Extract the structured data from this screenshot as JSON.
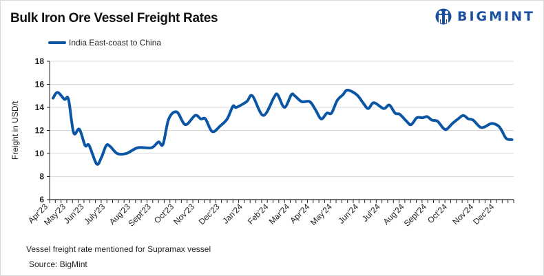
{
  "brand": {
    "name": "BIGMINT",
    "color": "#1a4fa0"
  },
  "chart_data": {
    "type": "line",
    "title": "Bulk Iron Ore Vessel Freight Rates",
    "ylabel": "Freight  in USD/t",
    "xlabel": "",
    "ylim": [
      6,
      18
    ],
    "yticks": [
      6,
      8,
      10,
      12,
      14,
      16,
      18
    ],
    "xlim_weeks": [
      0,
      81
    ],
    "grid": true,
    "legend_position": "top-left",
    "x_tick_labels": [
      {
        "label": "Apr'23",
        "week": 0
      },
      {
        "label": "May'23",
        "week": 2.4
      },
      {
        "label": "Jun'23",
        "week": 6.3
      },
      {
        "label": "July'23",
        "week": 10
      },
      {
        "label": "Aug'23",
        "week": 14.4
      },
      {
        "label": "Sept'23",
        "week": 18
      },
      {
        "label": "Oct'23",
        "week": 22
      },
      {
        "label": "Nov'23",
        "week": 25.6
      },
      {
        "label": "Dec'23",
        "week": 30
      },
      {
        "label": "Jan'24",
        "week": 34
      },
      {
        "label": "Feb'24",
        "week": 38.5
      },
      {
        "label": "Mar'24",
        "week": 42.2
      },
      {
        "label": "Apr'24",
        "week": 45.7
      },
      {
        "label": "May'24",
        "week": 49.6
      },
      {
        "label": "Jun'24",
        "week": 54.2
      },
      {
        "label": "Jul'24",
        "week": 58
      },
      {
        "label": "Aug'24",
        "week": 62.2
      },
      {
        "label": "Sept'24",
        "week": 66.1
      },
      {
        "label": "Oct'24",
        "week": 69.7
      },
      {
        "label": "Nov'24",
        "week": 74.3
      },
      {
        "label": "Dec'24",
        "week": 77.9
      }
    ],
    "series": [
      {
        "name": "India East-coast to China",
        "color": "#0b56a4",
        "points": [
          [
            0.6,
            14.8
          ],
          [
            1.4,
            15.3
          ],
          [
            2.6,
            14.7
          ],
          [
            3.3,
            14.7
          ],
          [
            4.2,
            11.8
          ],
          [
            5.2,
            12.1
          ],
          [
            6.2,
            10.7
          ],
          [
            6.9,
            10.7
          ],
          [
            8.2,
            9.1
          ],
          [
            9.0,
            9.6
          ],
          [
            9.9,
            10.7
          ],
          [
            10.6,
            10.6
          ],
          [
            11.8,
            10.0
          ],
          [
            13.4,
            10.0
          ],
          [
            15.4,
            10.5
          ],
          [
            17.8,
            10.5
          ],
          [
            19.0,
            11.0
          ],
          [
            19.8,
            10.8
          ],
          [
            20.8,
            13.0
          ],
          [
            22.2,
            13.6
          ],
          [
            23.7,
            12.5
          ],
          [
            25.4,
            13.3
          ],
          [
            26.4,
            13.0
          ],
          [
            27.2,
            13.0
          ],
          [
            28.4,
            11.9
          ],
          [
            29.8,
            12.4
          ],
          [
            31.0,
            13.0
          ],
          [
            32.0,
            14.1
          ],
          [
            32.6,
            14.0
          ],
          [
            34.4,
            14.5
          ],
          [
            35.4,
            15.0
          ],
          [
            37.3,
            13.3
          ],
          [
            39.2,
            14.9
          ],
          [
            39.8,
            15.1
          ],
          [
            41.0,
            14.0
          ],
          [
            42.2,
            15.1
          ],
          [
            42.8,
            15.0
          ],
          [
            44.0,
            14.5
          ],
          [
            45.4,
            14.5
          ],
          [
            46.4,
            13.8
          ],
          [
            47.4,
            13.0
          ],
          [
            48.4,
            13.5
          ],
          [
            49.2,
            13.5
          ],
          [
            50.2,
            14.6
          ],
          [
            51.2,
            15.1
          ],
          [
            52.0,
            15.5
          ],
          [
            53.6,
            15.1
          ],
          [
            54.7,
            14.4
          ],
          [
            55.6,
            13.9
          ],
          [
            56.6,
            14.4
          ],
          [
            58.3,
            13.9
          ],
          [
            59.3,
            14.2
          ],
          [
            60.3,
            13.5
          ],
          [
            61.1,
            13.4
          ],
          [
            62.3,
            12.8
          ],
          [
            63.1,
            12.5
          ],
          [
            64.1,
            13.1
          ],
          [
            65.1,
            13.1
          ],
          [
            65.9,
            13.2
          ],
          [
            66.7,
            12.9
          ],
          [
            67.7,
            12.8
          ],
          [
            68.7,
            12.2
          ],
          [
            69.3,
            12.1
          ],
          [
            70.3,
            12.6
          ],
          [
            71.3,
            13.0
          ],
          [
            72.2,
            13.3
          ],
          [
            73.1,
            13.0
          ],
          [
            73.9,
            12.9
          ],
          [
            75.1,
            12.3
          ],
          [
            75.9,
            12.3
          ],
          [
            77.1,
            12.6
          ],
          [
            78.3,
            12.4
          ],
          [
            78.9,
            12.0
          ],
          [
            79.7,
            11.3
          ],
          [
            80.7,
            11.2
          ]
        ]
      }
    ],
    "annotations": {
      "note": "Vessel freight rate mentioned for Supramax vessel",
      "source": "Source:  BigMint"
    }
  }
}
